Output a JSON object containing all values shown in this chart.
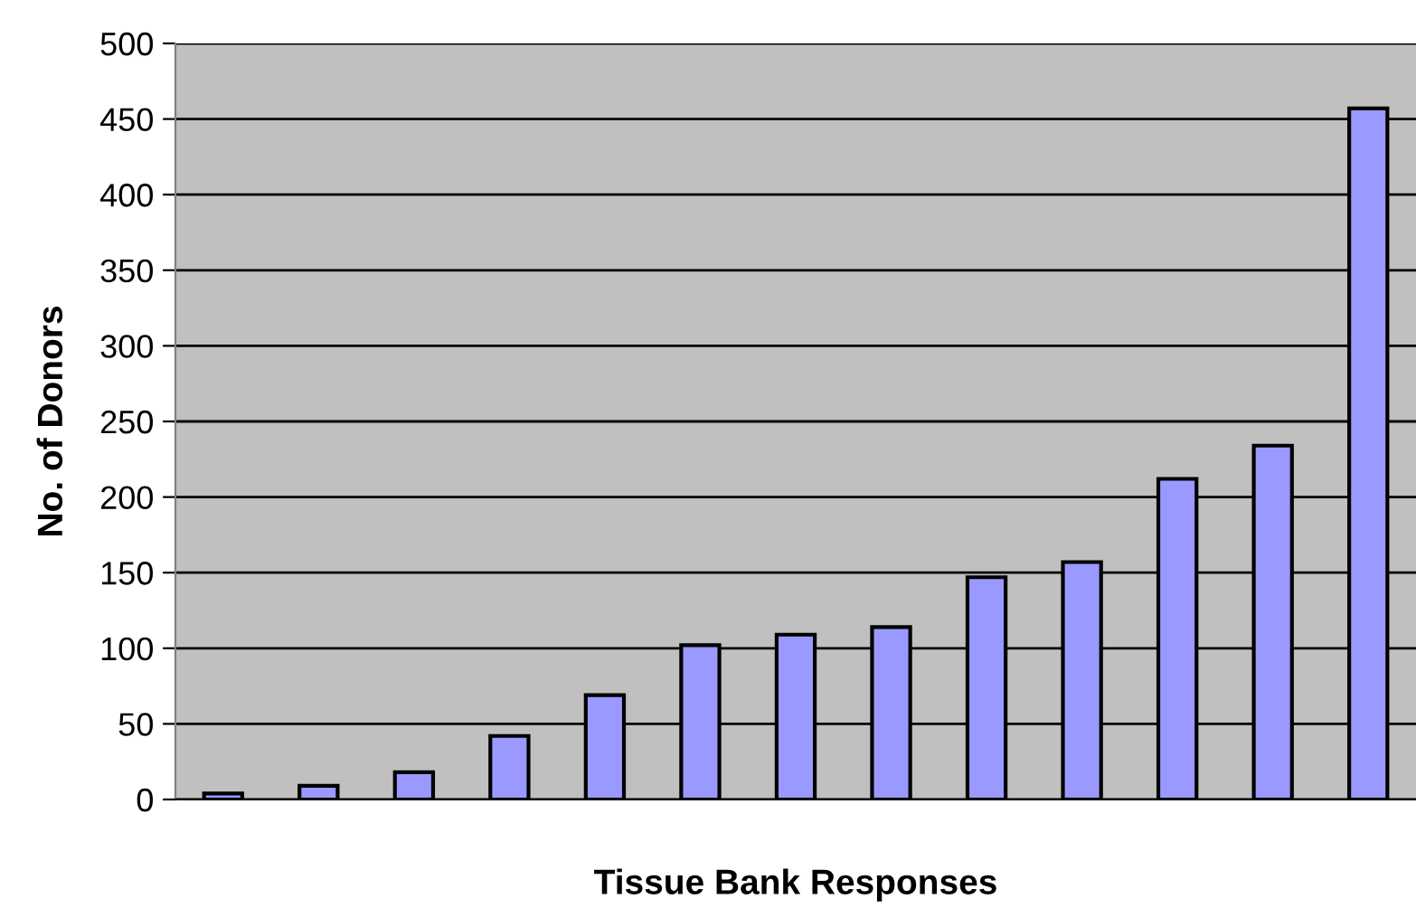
{
  "chart_data": {
    "type": "bar",
    "xlabel": "Tissue Bank Responses",
    "ylabel": "No. of Donors",
    "categories": [
      null,
      null,
      null,
      null,
      null,
      null,
      null,
      null,
      null,
      null,
      null,
      null,
      null
    ],
    "values": [
      4,
      9,
      18,
      42,
      69,
      102,
      109,
      114,
      147,
      157,
      212,
      234,
      457
    ],
    "color": "#9999ff",
    "ylim": [
      0,
      500
    ],
    "yticks": [
      0,
      50,
      100,
      150,
      200,
      250,
      300,
      350,
      400,
      450,
      500
    ],
    "grid": "y",
    "legend": false
  }
}
